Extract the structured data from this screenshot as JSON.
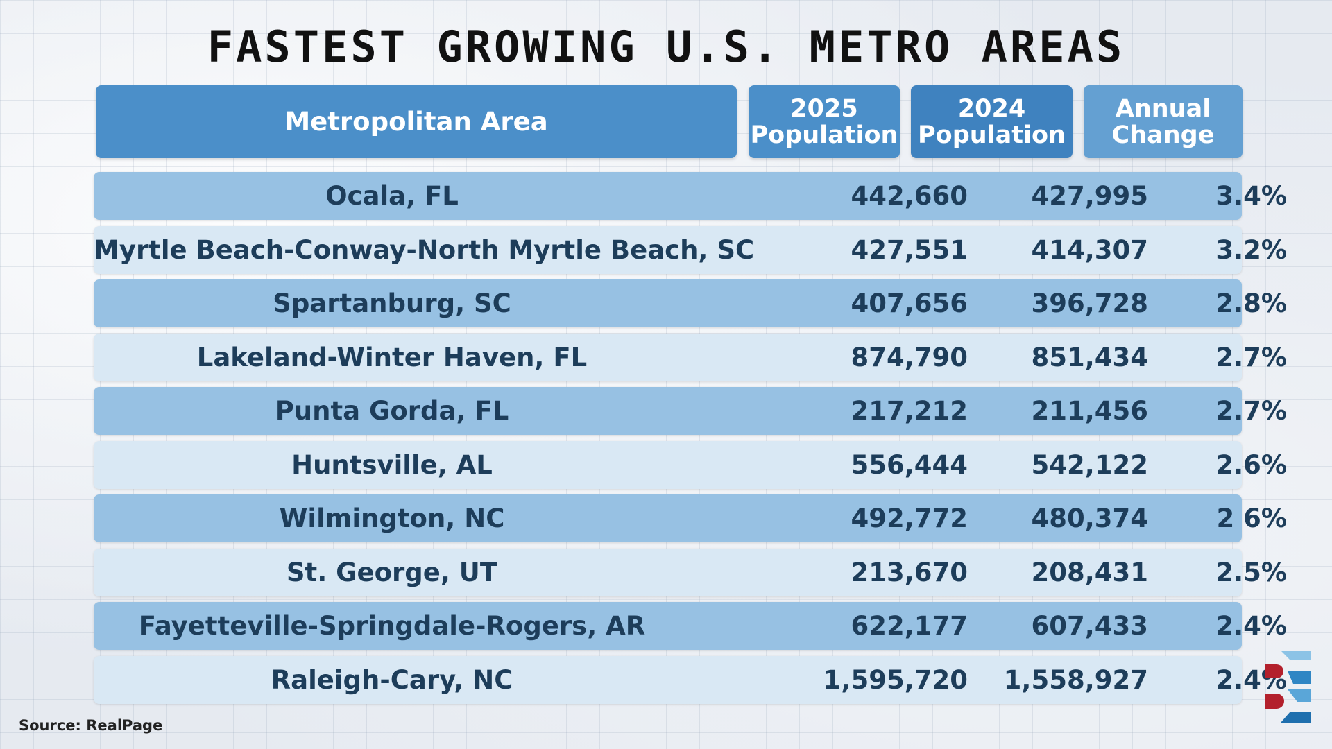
{
  "chart_data": {
    "type": "table",
    "title": "FASTEST GROWING U.S. METRO AREAS",
    "columns": [
      "Metropolitan Area",
      "2025 Population",
      "2024 Population",
      "Annual Change"
    ],
    "rows": [
      {
        "area": "Ocala, FL",
        "pop2025": "442,660",
        "pop2024": "427,995",
        "change": "3.4%"
      },
      {
        "area": "Myrtle Beach-Conway-North Myrtle Beach, SC",
        "pop2025": "427,551",
        "pop2024": "414,307",
        "change": "3.2%"
      },
      {
        "area": "Spartanburg, SC",
        "pop2025": "407,656",
        "pop2024": "396,728",
        "change": "2.8%"
      },
      {
        "area": "Lakeland-Winter Haven, FL",
        "pop2025": "874,790",
        "pop2024": "851,434",
        "change": "2.7%"
      },
      {
        "area": "Punta Gorda, FL",
        "pop2025": "217,212",
        "pop2024": "211,456",
        "change": "2.7%"
      },
      {
        "area": "Huntsville, AL",
        "pop2025": "556,444",
        "pop2024": "542,122",
        "change": "2.6%"
      },
      {
        "area": "Wilmington, NC",
        "pop2025": "492,772",
        "pop2024": "480,374",
        "change": "2 6%"
      },
      {
        "area": "St. George, UT",
        "pop2025": "213,670",
        "pop2024": "208,431",
        "change": "2.5%"
      },
      {
        "area": "Fayetteville-Springdale-Rogers, AR",
        "pop2025": "622,177",
        "pop2024": "607,433",
        "change": "2.4%"
      },
      {
        "area": "Raleigh-Cary, NC",
        "pop2025": "1,595,720",
        "pop2024": "1,558,927",
        "change": "2.4%"
      }
    ],
    "source": "Source: RealPage"
  },
  "colors": {
    "header": "#4b8fc9",
    "row_dark": "#97c1e3",
    "row_light": "#d9e8f4",
    "logo_red": "#b3202c",
    "logo_blue": "#2f86c4"
  },
  "header_lines": {
    "area": "Metropolitan Area",
    "pop2025": [
      "2025",
      "Population"
    ],
    "pop2024": [
      "2024",
      "Population"
    ],
    "change": [
      "Annual",
      "Change"
    ]
  }
}
